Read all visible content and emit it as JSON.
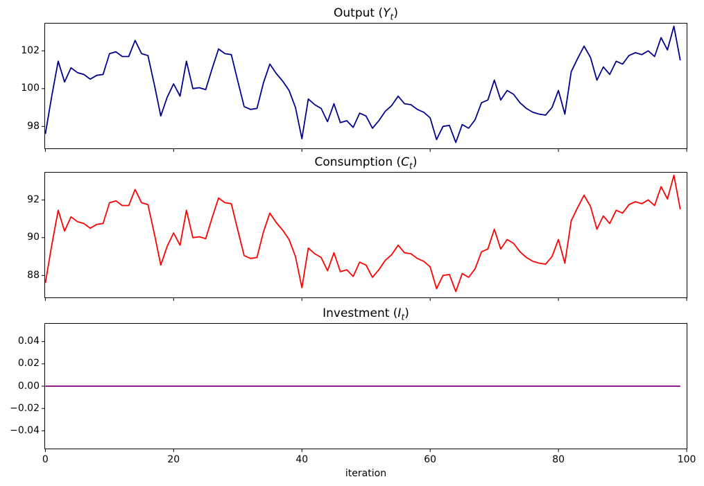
{
  "figure": {
    "background": "#ffffff",
    "n_points": 100
  },
  "chart_data": [
    {
      "type": "line",
      "title_plain": "Output (Y_t)",
      "title_parts": {
        "pre": "Output (",
        "var": "Y",
        "sub": "t",
        "post": ")"
      },
      "series_key": "output",
      "color": "#00008B",
      "xlim": [
        -0.15,
        100.1
      ],
      "ylim": [
        96.8,
        103.48
      ],
      "grid": false,
      "legend": "none",
      "xticks": {
        "values": [
          0,
          20,
          40,
          60,
          80,
          100
        ],
        "labels": [
          "0",
          "20",
          "40",
          "60",
          "80",
          "100"
        ],
        "show_labels": false
      },
      "yticks": {
        "values": [
          98,
          100,
          102
        ],
        "labels": [
          "98",
          "100",
          "102"
        ]
      },
      "xlabel": "",
      "values": [
        97.6,
        99.6,
        101.45,
        100.35,
        101.1,
        100.85,
        100.75,
        100.5,
        100.7,
        100.75,
        101.85,
        101.95,
        101.7,
        101.7,
        102.55,
        101.85,
        101.75,
        100.2,
        98.55,
        99.55,
        100.25,
        99.6,
        101.45,
        100.0,
        100.05,
        99.95,
        101.05,
        102.1,
        101.85,
        101.8,
        100.4,
        99.05,
        98.9,
        98.95,
        100.3,
        101.3,
        100.8,
        100.4,
        99.9,
        99.0,
        97.35,
        99.45,
        99.15,
        98.95,
        98.25,
        99.2,
        98.2,
        98.3,
        97.95,
        98.7,
        98.55,
        97.9,
        98.3,
        98.8,
        99.1,
        99.6,
        99.2,
        99.15,
        98.9,
        98.75,
        98.45,
        97.3,
        98.0,
        98.05,
        97.15,
        98.1,
        97.9,
        98.35,
        99.25,
        99.4,
        100.45,
        99.4,
        99.9,
        99.7,
        99.25,
        98.95,
        98.75,
        98.65,
        98.6,
        99.0,
        99.9,
        98.65,
        100.9,
        101.6,
        102.25,
        101.65,
        100.45,
        101.15,
        100.75,
        101.45,
        101.3,
        101.75,
        101.9,
        101.8,
        102.0,
        101.7,
        102.7,
        102.05,
        103.3,
        101.5
      ]
    },
    {
      "type": "line",
      "title_plain": "Consumption (C_t)",
      "title_parts": {
        "pre": "Consumption (",
        "var": "C",
        "sub": "t",
        "post": ")"
      },
      "series_key": "consumption",
      "color": "#FF0000",
      "xlim": [
        -0.15,
        100.1
      ],
      "ylim": [
        86.8,
        93.48
      ],
      "grid": false,
      "legend": "none",
      "xticks": {
        "values": [
          0,
          20,
          40,
          60,
          80,
          100
        ],
        "labels": [
          "0",
          "20",
          "40",
          "60",
          "80",
          "100"
        ],
        "show_labels": false
      },
      "yticks": {
        "values": [
          88,
          90,
          92
        ],
        "labels": [
          "88",
          "90",
          "92"
        ]
      },
      "xlabel": "",
      "values": [
        87.6,
        89.6,
        91.45,
        90.35,
        91.1,
        90.85,
        90.75,
        90.5,
        90.7,
        90.75,
        91.85,
        91.95,
        91.7,
        91.7,
        92.55,
        91.85,
        91.75,
        90.2,
        88.55,
        89.55,
        90.25,
        89.6,
        91.45,
        90.0,
        90.05,
        89.95,
        91.05,
        92.1,
        91.85,
        91.8,
        90.4,
        89.05,
        88.9,
        88.95,
        90.3,
        91.3,
        90.8,
        90.4,
        89.9,
        89.0,
        87.35,
        89.45,
        89.15,
        88.95,
        88.25,
        89.2,
        88.2,
        88.3,
        87.95,
        88.7,
        88.55,
        87.9,
        88.3,
        88.8,
        89.1,
        89.6,
        89.2,
        89.15,
        88.9,
        88.75,
        88.45,
        87.3,
        88.0,
        88.05,
        87.15,
        88.1,
        87.9,
        88.35,
        89.25,
        89.4,
        90.45,
        89.4,
        89.9,
        89.7,
        89.25,
        88.95,
        88.75,
        88.65,
        88.6,
        89.0,
        89.9,
        88.65,
        90.9,
        91.6,
        92.25,
        91.65,
        90.45,
        91.15,
        90.75,
        91.45,
        91.3,
        91.75,
        91.9,
        91.8,
        92.0,
        91.7,
        92.7,
        92.05,
        93.3,
        91.5
      ]
    },
    {
      "type": "line",
      "title_plain": "Investment (I_t)",
      "title_parts": {
        "pre": "Investment (",
        "var": "I",
        "sub": "t",
        "post": ")"
      },
      "series_key": "investment",
      "color": "#800080",
      "xlim": [
        -0.15,
        100.1
      ],
      "ylim": [
        -0.0566,
        0.0566
      ],
      "grid": false,
      "legend": "none",
      "xticks": {
        "values": [
          0,
          20,
          40,
          60,
          80,
          100
        ],
        "labels": [
          "0",
          "20",
          "40",
          "60",
          "80",
          "100"
        ],
        "show_labels": true
      },
      "yticks": {
        "values": [
          0.04,
          0.02,
          0.0,
          -0.02,
          -0.04
        ],
        "labels": [
          "0.04",
          "0.02",
          "0.00",
          "−0.02",
          "−0.04"
        ]
      },
      "xlabel": "iteration",
      "values": [
        0,
        0,
        0,
        0,
        0,
        0,
        0,
        0,
        0,
        0,
        0,
        0,
        0,
        0,
        0,
        0,
        0,
        0,
        0,
        0,
        0,
        0,
        0,
        0,
        0,
        0,
        0,
        0,
        0,
        0,
        0,
        0,
        0,
        0,
        0,
        0,
        0,
        0,
        0,
        0,
        0,
        0,
        0,
        0,
        0,
        0,
        0,
        0,
        0,
        0,
        0,
        0,
        0,
        0,
        0,
        0,
        0,
        0,
        0,
        0,
        0,
        0,
        0,
        0,
        0,
        0,
        0,
        0,
        0,
        0,
        0,
        0,
        0,
        0,
        0,
        0,
        0,
        0,
        0,
        0,
        0,
        0,
        0,
        0,
        0,
        0,
        0,
        0,
        0,
        0,
        0,
        0,
        0,
        0,
        0,
        0,
        0,
        0,
        0,
        0
      ]
    }
  ]
}
